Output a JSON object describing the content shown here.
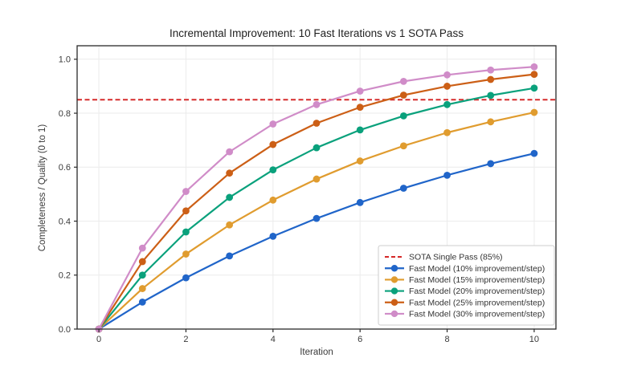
{
  "figure": {
    "background": "#ffffff"
  },
  "chart_data": {
    "type": "line",
    "title": "Incremental Improvement: 10 Fast Iterations vs 1 SOTA Pass",
    "xlabel": "Iteration",
    "ylabel": "Completeness / Quality (0 to 1)",
    "xlim": [
      -0.5,
      10.5
    ],
    "ylim": [
      0,
      1.05
    ],
    "xticks": [
      0,
      2,
      4,
      6,
      8,
      10
    ],
    "xtick_labels": [
      "0",
      "2",
      "4",
      "6",
      "8",
      "10"
    ],
    "yticks": [
      0.0,
      0.2,
      0.4,
      0.6,
      0.8,
      1.0
    ],
    "ytick_labels": [
      "0.0",
      "0.2",
      "0.4",
      "0.6",
      "0.8",
      "1.0"
    ],
    "grid": true,
    "grid_color": "#ebebeb",
    "spine_color": "#2a2a2a",
    "legend_position": "lower right",
    "x": [
      0,
      1,
      2,
      3,
      4,
      5,
      6,
      7,
      8,
      9,
      10
    ],
    "reference_line": {
      "label": "SOTA Single Pass (85%)",
      "value": 0.85,
      "color": "#d62c2c",
      "style": "dashed"
    },
    "series": [
      {
        "name": "Fast Model (10% improvement/step)",
        "color": "#2065c9",
        "marker": "circle",
        "values": [
          0,
          0.1,
          0.19,
          0.271,
          0.344,
          0.41,
          0.469,
          0.522,
          0.57,
          0.613,
          0.651
        ]
      },
      {
        "name": "Fast Model (15% improvement/step)",
        "color": "#e09c2f",
        "marker": "circle",
        "values": [
          0,
          0.15,
          0.278,
          0.386,
          0.478,
          0.556,
          0.623,
          0.679,
          0.728,
          0.768,
          0.803
        ]
      },
      {
        "name": "Fast Model (20% improvement/step)",
        "color": "#0aa17c",
        "marker": "circle",
        "values": [
          0,
          0.2,
          0.36,
          0.488,
          0.59,
          0.672,
          0.738,
          0.79,
          0.832,
          0.866,
          0.893
        ]
      },
      {
        "name": "Fast Model (25% improvement/step)",
        "color": "#cc5f16",
        "marker": "circle",
        "values": [
          0,
          0.25,
          0.438,
          0.578,
          0.684,
          0.763,
          0.822,
          0.867,
          0.9,
          0.925,
          0.944
        ]
      },
      {
        "name": "Fast Model (30% improvement/step)",
        "color": "#d08cc8",
        "marker": "circle",
        "values": [
          0,
          0.3,
          0.51,
          0.657,
          0.76,
          0.832,
          0.882,
          0.918,
          0.942,
          0.96,
          0.972
        ]
      }
    ]
  }
}
